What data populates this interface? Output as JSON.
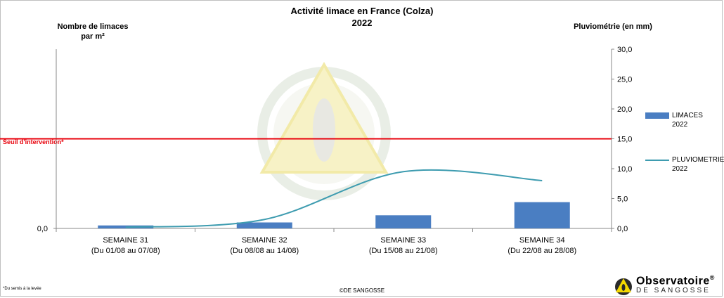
{
  "title_line1": "Activité limace en France (Colza)",
  "title_line2": "2022",
  "ylabel_left": "Nombre de limaces par m²",
  "ylabel_right": "Pluviométrie (en mm)",
  "threshold_label": "Seuil d'intervention*",
  "footnote": "*Du semis à la levée",
  "copyright": "©DE SANGOSSE",
  "logo": {
    "name": "Observatoire",
    "reg": "®",
    "sub": "DE SANGOSSE"
  },
  "colors": {
    "bars": "#4a7ec2",
    "line": "#3e9cb0",
    "threshold": "#e8000b",
    "watermark": "#f4eec0"
  },
  "chart_data": {
    "type": "bar",
    "categories": [
      [
        "SEMAINE 31",
        "(Du 01/08 au 07/08)"
      ],
      [
        "SEMAINE 32",
        "(Du 08/08 au 14/08)"
      ],
      [
        "SEMAINE 33",
        "(Du 15/08 au 21/08)"
      ],
      [
        "SEMAINE 34",
        "(Du 22/08 au 28/08)"
      ]
    ],
    "series": [
      {
        "name": "LIMACES 2022",
        "type": "bar",
        "axis": "right",
        "values": [
          0.5,
          1.0,
          2.2,
          4.4
        ]
      },
      {
        "name": "PLUVIOMETRIE 2022",
        "type": "line",
        "smooth": true,
        "axis": "right",
        "values": [
          0.2,
          1.5,
          9.5,
          8.0
        ]
      }
    ],
    "y_left": {
      "ticks": [
        "0,0"
      ],
      "ylim": [
        0,
        30
      ]
    },
    "y_right": {
      "ticks": [
        "0,0",
        "5,0",
        "10,0",
        "15,0",
        "20,0",
        "25,0",
        "30,0"
      ],
      "ylim": [
        0,
        30
      ]
    },
    "threshold": {
      "value": 15
    },
    "legend_position": "right"
  }
}
